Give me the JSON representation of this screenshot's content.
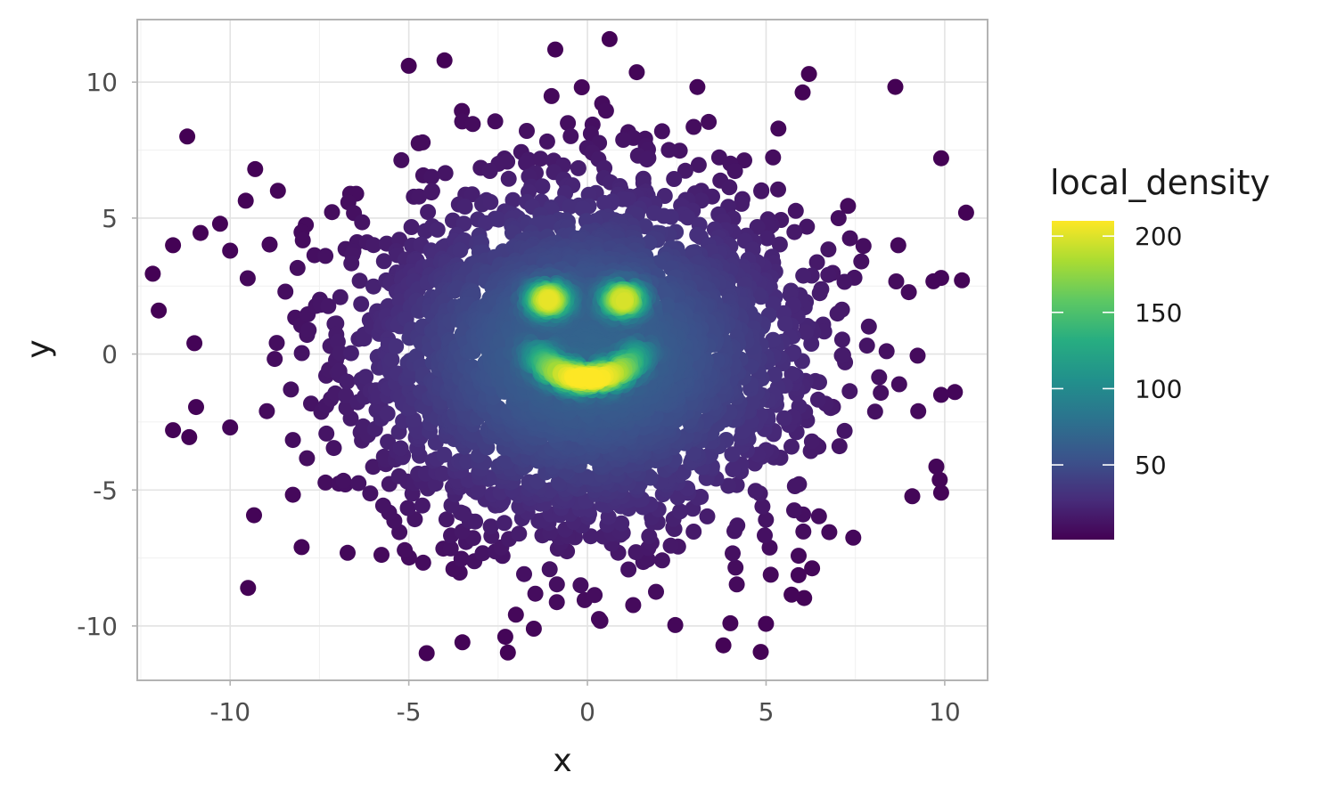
{
  "chart_data": {
    "type": "scatter",
    "title": "",
    "xlabel": "x",
    "ylabel": "y",
    "xlim": [
      -12.6,
      11.2
    ],
    "ylim": [
      -12.0,
      12.3
    ],
    "x_ticks": [
      -10,
      -5,
      0,
      5,
      10
    ],
    "x_tick_labels": [
      "-10",
      "-5",
      "0",
      "5",
      "10"
    ],
    "y_ticks": [
      -10,
      -5,
      0,
      5,
      10
    ],
    "y_tick_labels": [
      "-10",
      "-5",
      "0",
      "5",
      "10"
    ],
    "grid": true,
    "theme": "light",
    "color_scale": {
      "name": "local_density",
      "palette": "viridis",
      "colors": [
        "#440154",
        "#472c7a",
        "#3b528b",
        "#2c728e",
        "#21908c",
        "#27ad81",
        "#5dc863",
        "#aadc32",
        "#fde725"
      ],
      "min": 1,
      "max": 210,
      "ticks": [
        50,
        100,
        150,
        200
      ],
      "tick_labels": [
        "50",
        "100",
        "150",
        "200"
      ]
    },
    "legend_position": "right",
    "description_of_data": {
      "cloud": {
        "center": [
          0,
          0
        ],
        "sd": 3.2,
        "n_points": 3000
      },
      "features": [
        {
          "name": "left-eye",
          "center": [
            -1.1,
            2.0
          ],
          "density": 205
        },
        {
          "name": "right-eye",
          "center": [
            1.0,
            2.0
          ],
          "density": 200
        },
        {
          "name": "mouth",
          "center": [
            0,
            -0.9
          ],
          "density": 210
        }
      ]
    },
    "outliers": [
      [
        -11.2,
        8.0
      ],
      [
        -11.6,
        4.0
      ],
      [
        -12.0,
        1.6
      ],
      [
        -11.0,
        0.4
      ],
      [
        -11.6,
        -2.8
      ],
      [
        -9.5,
        -8.6
      ],
      [
        -8.0,
        -7.1
      ],
      [
        -5.0,
        10.6
      ],
      [
        -4.0,
        10.8
      ],
      [
        -0.9,
        11.2
      ],
      [
        6.2,
        10.3
      ],
      [
        10.6,
        5.2
      ],
      [
        9.9,
        7.2
      ],
      [
        9.9,
        2.8
      ],
      [
        9.9,
        -1.5
      ],
      [
        9.9,
        -5.1
      ],
      [
        -4.5,
        -11.0
      ],
      [
        -3.5,
        -10.6
      ],
      [
        4.0,
        -9.9
      ],
      [
        -1.5,
        -10.1
      ],
      [
        -2.3,
        -10.4
      ],
      [
        -9.3,
        6.8
      ],
      [
        -10.0,
        3.8
      ],
      [
        -10.0,
        -2.7
      ],
      [
        8.7,
        4.0
      ]
    ]
  }
}
